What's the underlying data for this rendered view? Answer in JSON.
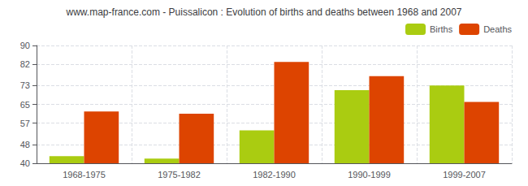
{
  "chart_data": {
    "type": "bar",
    "title": "www.map-france.com - Puissalicon : Evolution of births and deaths between 1968 and 2007",
    "categories": [
      "1968-1975",
      "1975-1982",
      "1982-1990",
      "1990-1999",
      "1999-2007"
    ],
    "series": [
      {
        "name": "Births",
        "color": "#aacc11",
        "values": [
          43,
          42,
          54,
          71,
          73
        ]
      },
      {
        "name": "Deaths",
        "color": "#dd4400",
        "values": [
          62,
          61,
          83,
          77,
          66
        ]
      }
    ],
    "ylim": [
      40,
      90
    ],
    "yticks": [
      40,
      48,
      57,
      65,
      73,
      82,
      90
    ],
    "grid": true,
    "legend": "upper right"
  }
}
